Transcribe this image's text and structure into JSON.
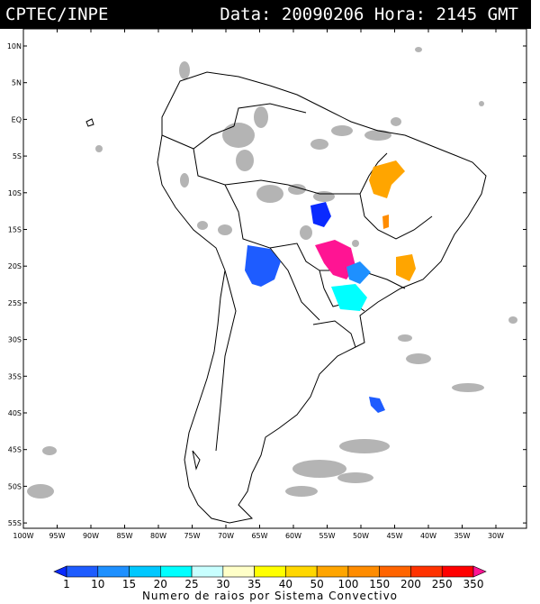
{
  "header": {
    "agency": "CPTEC/INPE",
    "datetime": "Data: 20090206 Hora: 2145 GMT"
  },
  "map": {
    "lat_labels": [
      "10N",
      "5N",
      "EQ",
      "5S",
      "10S",
      "15S",
      "20S",
      "25S",
      "30S",
      "35S",
      "40S",
      "45S",
      "50S",
      "55S"
    ],
    "lon_labels": [
      "100W",
      "95W",
      "90W",
      "85W",
      "80W",
      "75W",
      "70W",
      "65W",
      "60W",
      "55W",
      "50W",
      "45W",
      "40W",
      "35W",
      "30W"
    ],
    "lon_range": [
      -100,
      -27
    ],
    "lat_range": [
      -56,
      13
    ]
  },
  "colorbar": {
    "labels": [
      "1",
      "10",
      "15",
      "20",
      "25",
      "30",
      "35",
      "40",
      "50",
      "100",
      "150",
      "200",
      "250",
      "350"
    ],
    "colors": [
      "#0a2aff",
      "#1e5cff",
      "#1e90ff",
      "#00c8ff",
      "#00ffff",
      "#c8ffff",
      "#ffffc8",
      "#ffff00",
      "#ffd700",
      "#ffa500",
      "#ff8c00",
      "#ff6400",
      "#ff3200",
      "#ff0000",
      "#ff1493"
    ],
    "title": "Numero de raios por Sistema Convectivo"
  },
  "colors": {
    "cloud_gray": "#b4b4b4",
    "blue_dark": "#0a2aff",
    "blue": "#1e5cff",
    "cyan": "#00ffff",
    "magenta": "#ff1493",
    "orange": "#ffa500"
  }
}
